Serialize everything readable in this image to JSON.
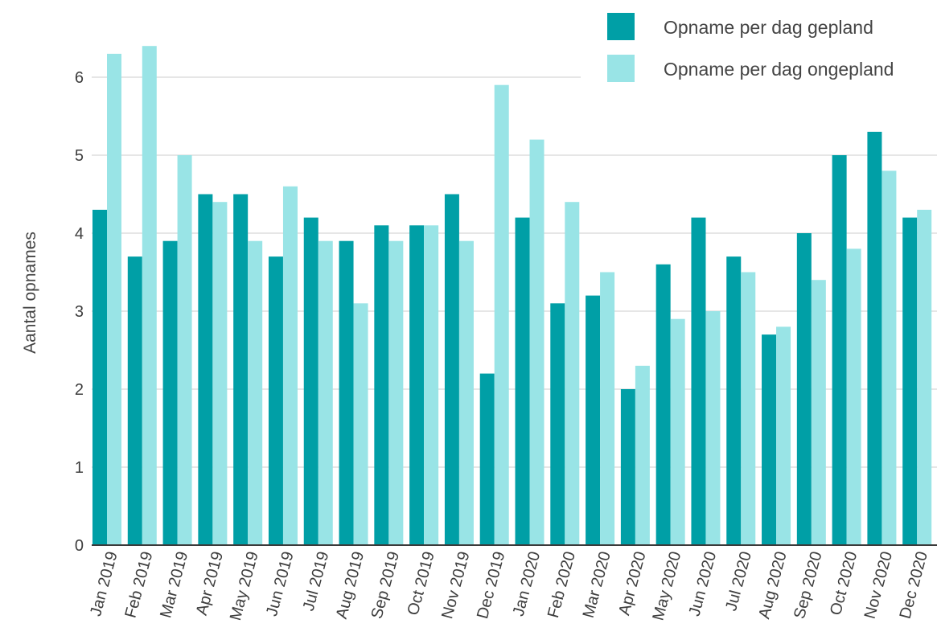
{
  "chart_data": {
    "type": "bar",
    "title": "",
    "xlabel": "",
    "ylabel": "Aantal opnames",
    "ylim": [
      0,
      6.5
    ],
    "yticks": [
      0,
      1,
      2,
      3,
      4,
      5,
      6
    ],
    "grid": true,
    "legend_position": "top-right",
    "categories": [
      "Jan 2019",
      "Feb 2019",
      "Mar 2019",
      "Apr 2019",
      "May 2019",
      "Jun 2019",
      "Jul 2019",
      "Aug 2019",
      "Sep 2019",
      "Oct 2019",
      "Nov 2019",
      "Dec 2019",
      "Jan 2020",
      "Feb 2020",
      "Mar 2020",
      "Apr 2020",
      "May 2020",
      "Jun 2020",
      "Jul 2020",
      "Aug 2020",
      "Sep 2020",
      "Oct 2020",
      "Nov 2020",
      "Dec 2020"
    ],
    "series": [
      {
        "name": "Opname per dag gepland",
        "color": "#009fa6",
        "values": [
          4.3,
          3.7,
          3.9,
          4.5,
          4.5,
          3.7,
          4.2,
          3.9,
          4.1,
          4.1,
          4.5,
          2.2,
          4.2,
          3.1,
          3.2,
          2.0,
          3.6,
          4.2,
          3.7,
          2.7,
          4.0,
          5.0,
          5.3,
          4.2
        ]
      },
      {
        "name": "Opname per dag ongepland",
        "color": "#99e4e6",
        "values": [
          6.3,
          6.4,
          5.0,
          4.4,
          3.9,
          4.6,
          3.9,
          3.1,
          3.9,
          4.1,
          3.9,
          5.9,
          5.2,
          4.4,
          3.5,
          2.3,
          2.9,
          3.0,
          3.5,
          2.8,
          3.4,
          3.8,
          4.8,
          4.3
        ]
      }
    ]
  },
  "colors": {
    "gridline": "#e6e6e6",
    "baseline": "#3a3a3a",
    "text": "#3d3d3d"
  }
}
